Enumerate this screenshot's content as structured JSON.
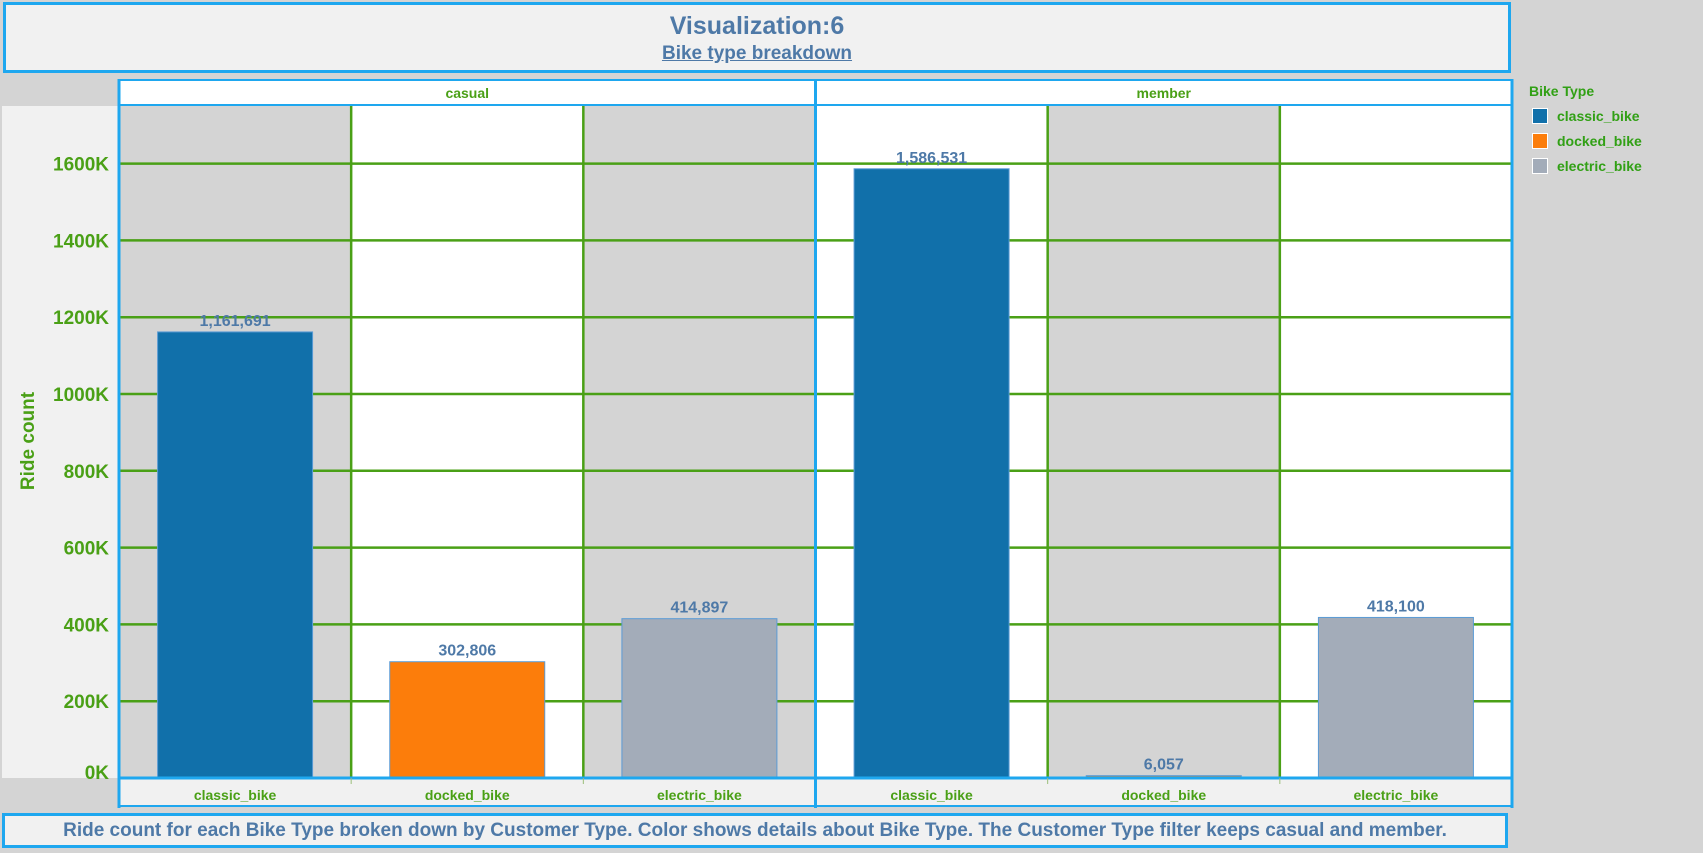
{
  "header": {
    "title": "Visualization:6",
    "subtitle": "Bike type breakdown"
  },
  "caption": "Ride count for each Bike Type broken down by Customer Type.  Color shows details about Bike Type.  The Customer Type filter keeps casual and member.",
  "legend": {
    "title": "Bike Type",
    "items": [
      {
        "label": "classic_bike",
        "color": "#1170aa"
      },
      {
        "label": "docked_bike",
        "color": "#fc7d0b"
      },
      {
        "label": "electric_bike",
        "color": "#a3acb9"
      }
    ]
  },
  "colors": {
    "accent_border": "#1ea7ef",
    "grid": "#4aa016",
    "axis_text": "#4aa016",
    "value_label": "#4e79a7"
  },
  "chart_data": {
    "type": "bar",
    "ylabel": "Ride count",
    "ylim": [
      0,
      1750000
    ],
    "yticks": [
      0,
      200000,
      400000,
      600000,
      800000,
      1000000,
      1200000,
      1400000,
      1600000
    ],
    "ytick_labels": [
      "0K",
      "200K",
      "400K",
      "600K",
      "800K",
      "1000K",
      "1200K",
      "1400K",
      "1600K"
    ],
    "grid": true,
    "legend_position": "top-right",
    "panels": [
      {
        "name": "casual",
        "categories": [
          "classic_bike",
          "docked_bike",
          "electric_bike"
        ],
        "values": [
          1161691,
          302806,
          414897
        ],
        "value_labels": [
          "1,161,691",
          "302,806",
          "414,897"
        ],
        "colors": [
          "#1170aa",
          "#fc7d0b",
          "#a3acb9"
        ]
      },
      {
        "name": "member",
        "categories": [
          "classic_bike",
          "docked_bike",
          "electric_bike"
        ],
        "values": [
          1586531,
          6057,
          418100
        ],
        "value_labels": [
          "1,586,531",
          "6,057",
          "418,100"
        ],
        "colors": [
          "#1170aa",
          "#fc7d0b",
          "#a3acb9"
        ]
      }
    ]
  }
}
